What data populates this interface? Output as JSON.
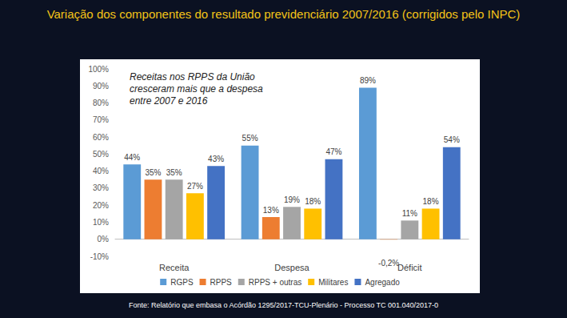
{
  "chart_data": {
    "type": "bar",
    "title": "Variação dos componentes do resultado previdenciário 2007/2016 (corrigidos pelo INPC)",
    "annotation": "Receitas nos RPPS da União cresceram mais que a despesa entre 2007 e 2016",
    "source": "Fonte: Relatório que embasa o Acórdão 1295/2017-TCU-Plenário - Processo TC 001.040/2017-0",
    "categories": [
      "Receita",
      "Despesa",
      "Déficit"
    ],
    "series": [
      {
        "name": "RGPS",
        "color": "#5b9bd5",
        "values": [
          44,
          55,
          89
        ],
        "value_labels": [
          "44%",
          "55%",
          "89%"
        ]
      },
      {
        "name": "RPPS",
        "color": "#ed7d31",
        "values": [
          35,
          13,
          -0.2
        ],
        "value_labels": [
          "35%",
          "13%",
          "-0,2%"
        ]
      },
      {
        "name": "RPPS + outras",
        "color": "#a5a5a5",
        "values": [
          35,
          19,
          11
        ],
        "value_labels": [
          "35%",
          "19%",
          "11%"
        ]
      },
      {
        "name": "Militares",
        "color": "#ffc000",
        "values": [
          27,
          18,
          18
        ],
        "value_labels": [
          "27%",
          "18%",
          "18%"
        ]
      },
      {
        "name": "Agregado",
        "color": "#4472c4",
        "values": [
          43,
          47,
          54
        ],
        "value_labels": [
          "43%",
          "47%",
          "54%"
        ]
      }
    ],
    "ylim": [
      -10,
      100
    ],
    "yticks": [
      {
        "value": -10,
        "label": "-10%"
      },
      {
        "value": 0,
        "label": "0%"
      },
      {
        "value": 10,
        "label": "10%"
      },
      {
        "value": 20,
        "label": "20%"
      },
      {
        "value": 30,
        "label": "30%"
      },
      {
        "value": 40,
        "label": "40%"
      },
      {
        "value": 50,
        "label": "50%"
      },
      {
        "value": 60,
        "label": "60%"
      },
      {
        "value": 70,
        "label": "70%"
      },
      {
        "value": 80,
        "label": "80%"
      },
      {
        "value": 90,
        "label": "90%"
      },
      {
        "value": 100,
        "label": "100%"
      }
    ],
    "grid": false,
    "legend": "bottom",
    "data_labels": true
  }
}
